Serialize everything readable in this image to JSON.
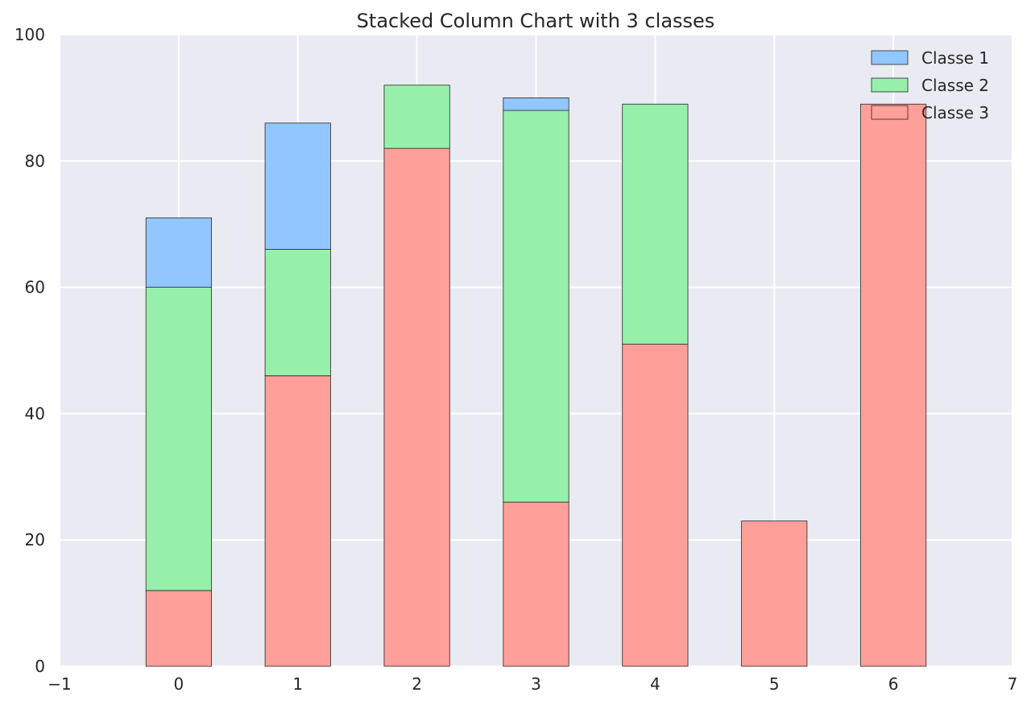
{
  "chart_data": {
    "type": "bar",
    "stacked": true,
    "title": "Stacked Column Chart with 3 classes",
    "xlabel": "",
    "ylabel": "",
    "categories": [
      0,
      1,
      2,
      3,
      4,
      5,
      6
    ],
    "xlim": [
      -1,
      7
    ],
    "ylim": [
      0,
      100
    ],
    "xticks": [
      "−1",
      "0",
      "1",
      "2",
      "3",
      "4",
      "5",
      "6",
      "7"
    ],
    "yticks": [
      "0",
      "20",
      "40",
      "60",
      "80",
      "100"
    ],
    "grid": true,
    "legend_position": "top-right",
    "series": [
      {
        "name": "Classe 3",
        "color": "#ff9f9a",
        "values": [
          12,
          46,
          82,
          26,
          51,
          23,
          89
        ]
      },
      {
        "name": "Classe 2",
        "color": "#97f0aa",
        "values": [
          48,
          20,
          10,
          62,
          38,
          0,
          0
        ]
      },
      {
        "name": "Classe 1",
        "color": "#92c6ff",
        "values": [
          11,
          20,
          0,
          2,
          0,
          0,
          0
        ]
      }
    ],
    "legend_order": [
      "Classe 1",
      "Classe 2",
      "Classe 3"
    ]
  }
}
